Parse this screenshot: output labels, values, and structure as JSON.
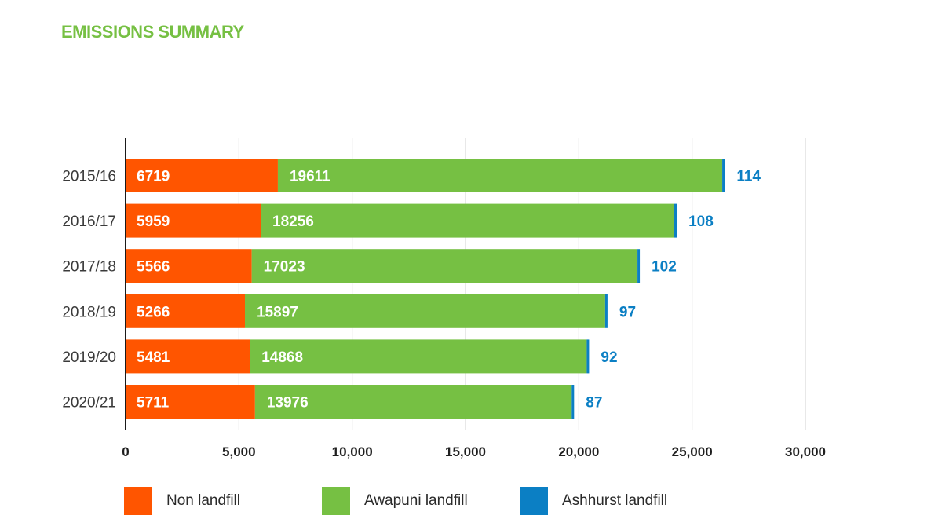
{
  "title": "EMISSIONS SUMMARY",
  "colors": {
    "title": "#76c043",
    "non_landfill": "#ff5500",
    "awapuni": "#76c043",
    "ashhurst": "#0b7fc4",
    "grid": "#d0d0d0",
    "axis": "#1a1a1a"
  },
  "chart_data": {
    "type": "bar",
    "orientation": "horizontal",
    "stacked": true,
    "title": "EMISSIONS SUMMARY",
    "categories": [
      "2015/16",
      "2016/17",
      "2017/18",
      "2018/19",
      "2019/20",
      "2020/21"
    ],
    "series": [
      {
        "name": "Non landfill",
        "values": [
          6719,
          5959,
          5566,
          5266,
          5481,
          5711
        ]
      },
      {
        "name": "Awapuni landfill",
        "values": [
          19611,
          18256,
          17023,
          15897,
          14868,
          13976
        ]
      },
      {
        "name": "Ashhurst landfill",
        "values": [
          114,
          108,
          102,
          97,
          92,
          87
        ]
      }
    ],
    "xlim": [
      0,
      30000
    ],
    "xticks": [
      "0",
      "5,000",
      "10,000",
      "15,000",
      "20,000",
      "25,000",
      "30,000"
    ],
    "grid": true,
    "legend": "bottom"
  },
  "legend": [
    {
      "label": "Non landfill"
    },
    {
      "label": "Awapuni landfill"
    },
    {
      "label": "Ashhurst landfill"
    }
  ]
}
